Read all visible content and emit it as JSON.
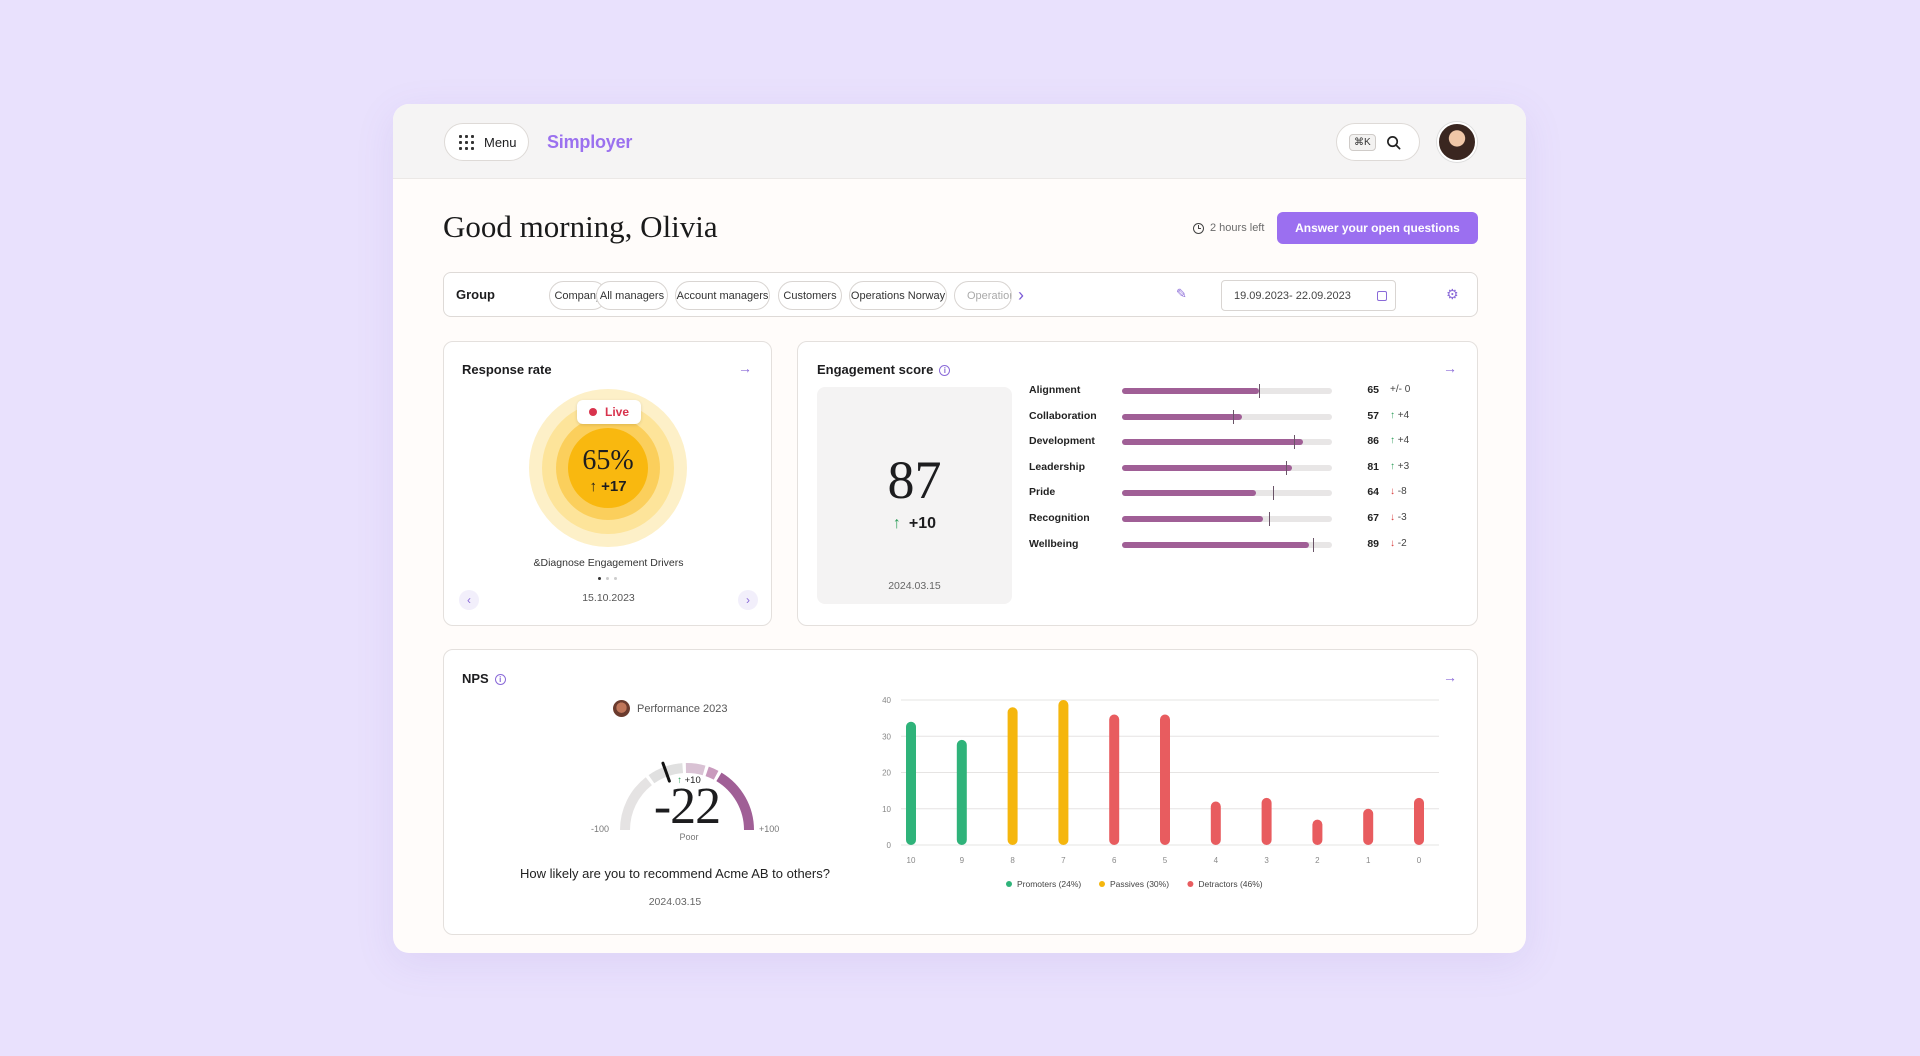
{
  "header": {
    "menu_label": "Menu",
    "brand": "Simployer",
    "shortcut": "⌘K",
    "icons": [
      "grid-icon",
      "search-icon",
      "avatar"
    ]
  },
  "greeting": "Good morning, Olivia",
  "time_left": "2 hours left",
  "cta_label": "Answer your open questions",
  "filters": {
    "label": "Group",
    "chips": [
      "Company",
      "All managers",
      "Account managers",
      "Customers",
      "Operations Norway",
      "Operations"
    ],
    "date_range": "19.09.2023- 22.09.2023"
  },
  "response_rate": {
    "title": "Response rate",
    "status": "Live",
    "percent": "65%",
    "delta": "↑ +17",
    "caption": "&Diagnose Engagement Drivers",
    "date": "15.10.2023"
  },
  "engagement": {
    "title": "Engagement score",
    "score": "87",
    "delta": "+10",
    "date": "2024.03.15",
    "metrics": [
      {
        "label": "Alignment",
        "value": 65,
        "marker": 65,
        "delta": "+/- 0",
        "dir": "none"
      },
      {
        "label": "Collaboration",
        "value": 57,
        "marker": 53,
        "delta": "+4",
        "dir": "up"
      },
      {
        "label": "Development",
        "value": 86,
        "marker": 82,
        "delta": "+4",
        "dir": "up"
      },
      {
        "label": "Leadership",
        "value": 81,
        "marker": 78,
        "delta": "+3",
        "dir": "up"
      },
      {
        "label": "Pride",
        "value": 64,
        "marker": 72,
        "delta": "-8",
        "dir": "down"
      },
      {
        "label": "Recognition",
        "value": 67,
        "marker": 70,
        "delta": "-3",
        "dir": "down"
      },
      {
        "label": "Wellbeing",
        "value": 89,
        "marker": 91,
        "delta": "-2",
        "dir": "down"
      }
    ]
  },
  "nps": {
    "title": "NPS",
    "survey": "Performance 2023",
    "score": "-22",
    "score_value": -22,
    "delta": "+10",
    "rating": "Poor",
    "min": "-100",
    "max": "+100",
    "question": "How likely are you to recommend Acme AB to others?",
    "date": "2024.03.15"
  },
  "chart_data": {
    "type": "bar",
    "categories": [
      "10",
      "9",
      "8",
      "7",
      "6",
      "5",
      "4",
      "3",
      "2",
      "1",
      "0"
    ],
    "values": [
      34,
      29,
      38,
      40,
      36,
      36,
      12,
      13,
      7,
      10,
      13
    ],
    "bar_groups": [
      "promoters",
      "promoters",
      "passives",
      "passives",
      "detractors",
      "detractors",
      "detractors",
      "detractors",
      "detractors",
      "detractors",
      "detractors"
    ],
    "ylim": [
      0,
      40
    ],
    "yticks": [
      0,
      10,
      20,
      30,
      40
    ],
    "grid": true,
    "series": [
      {
        "key": "promoters",
        "name": "Promoters (24%)",
        "color": "#2fb37a"
      },
      {
        "key": "passives",
        "name": "Passives (30%)",
        "color": "#f5b60d"
      },
      {
        "key": "detractors",
        "name": "Detractors (46%)",
        "color": "#e85c5f"
      }
    ],
    "legend": "bottom"
  }
}
